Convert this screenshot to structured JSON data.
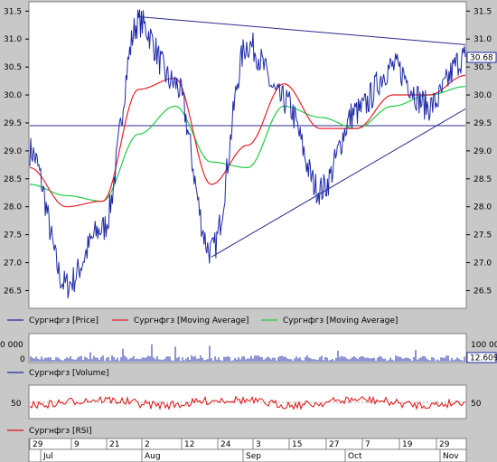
{
  "colors": {
    "panel_bg": "#ffffff",
    "frame_bg": "#c8c8c8",
    "price": "#1f2aa8",
    "ma_fast": "#e8202a",
    "ma_slow": "#22cc44",
    "trendline": "#2a2a8c",
    "support": "#2a2a8c",
    "rsi": "#e01010",
    "volume": "#1f2aa8",
    "last_value_box": "#1f2aa8"
  },
  "price_panel": {
    "y_ticks": [
      "31.5",
      "31.0",
      "30.5",
      "30.0",
      "29.5",
      "29.0",
      "28.5",
      "28.0",
      "27.5",
      "27.0",
      "26.5"
    ],
    "last_value": "30.68",
    "legend": [
      {
        "label": "Сургнфгз [Price]",
        "color_key": "price"
      },
      {
        "label": "Сургнфгз [Moving Average]",
        "color_key": "ma_fast"
      },
      {
        "label": "Сургнфгз [Moving Average]",
        "color_key": "ma_slow"
      }
    ]
  },
  "volume_panel": {
    "left_tick": "0 000",
    "left_tick_zero": "0",
    "right_tick": "100 00",
    "right_tick_zero": "0",
    "last_value": "12.609",
    "legend": "Сургнфгз [Volume]"
  },
  "rsi_panel": {
    "left_tick": "50",
    "right_tick": "50",
    "legend": "Сургнфгз [RSI]"
  },
  "time_axis": {
    "days": [
      "29",
      "9",
      "21",
      "2",
      "12",
      "24",
      "3",
      "15",
      "27",
      "7",
      "19",
      "29"
    ],
    "months": [
      "Jul",
      "Aug",
      "Sep",
      "Oct",
      "Nov"
    ]
  },
  "chart_data": {
    "type": "line",
    "ylim": [
      26.2,
      31.65
    ],
    "x": [
      "Jun 29",
      "Jul 9",
      "Jul 21",
      "Aug 2",
      "Aug 12",
      "Aug 24",
      "Sep 3",
      "Sep 15",
      "Sep 27",
      "Oct 7",
      "Oct 19",
      "Oct 29",
      "Nov 2"
    ],
    "series": [
      {
        "name": "Сургнфгз [Price]",
        "values": [
          29.0,
          26.6,
          27.6,
          31.3,
          30.2,
          27.2,
          30.9,
          29.9,
          28.3,
          29.7,
          30.5,
          29.8,
          30.68
        ]
      },
      {
        "name": "Сургнфгз [Moving Average]",
        "values": [
          28.7,
          28.0,
          28.1,
          30.1,
          30.3,
          28.4,
          29.1,
          30.2,
          29.4,
          29.4,
          30.0,
          30.0,
          30.35
        ]
      },
      {
        "name": "Сургнфгз [Moving Average]",
        "values": [
          28.4,
          28.2,
          28.1,
          29.3,
          29.8,
          28.8,
          28.7,
          29.8,
          29.6,
          29.4,
          29.8,
          30.0,
          30.15
        ]
      }
    ],
    "trendlines": [
      {
        "from": [
          "Aug 2",
          31.4
        ],
        "to": [
          "Nov 2",
          30.9
        ]
      },
      {
        "from": [
          "Aug 24",
          27.1
        ],
        "to": [
          "Nov 2",
          29.75
        ]
      }
    ],
    "horizontal_line": 29.45,
    "rsi_level": 50
  }
}
